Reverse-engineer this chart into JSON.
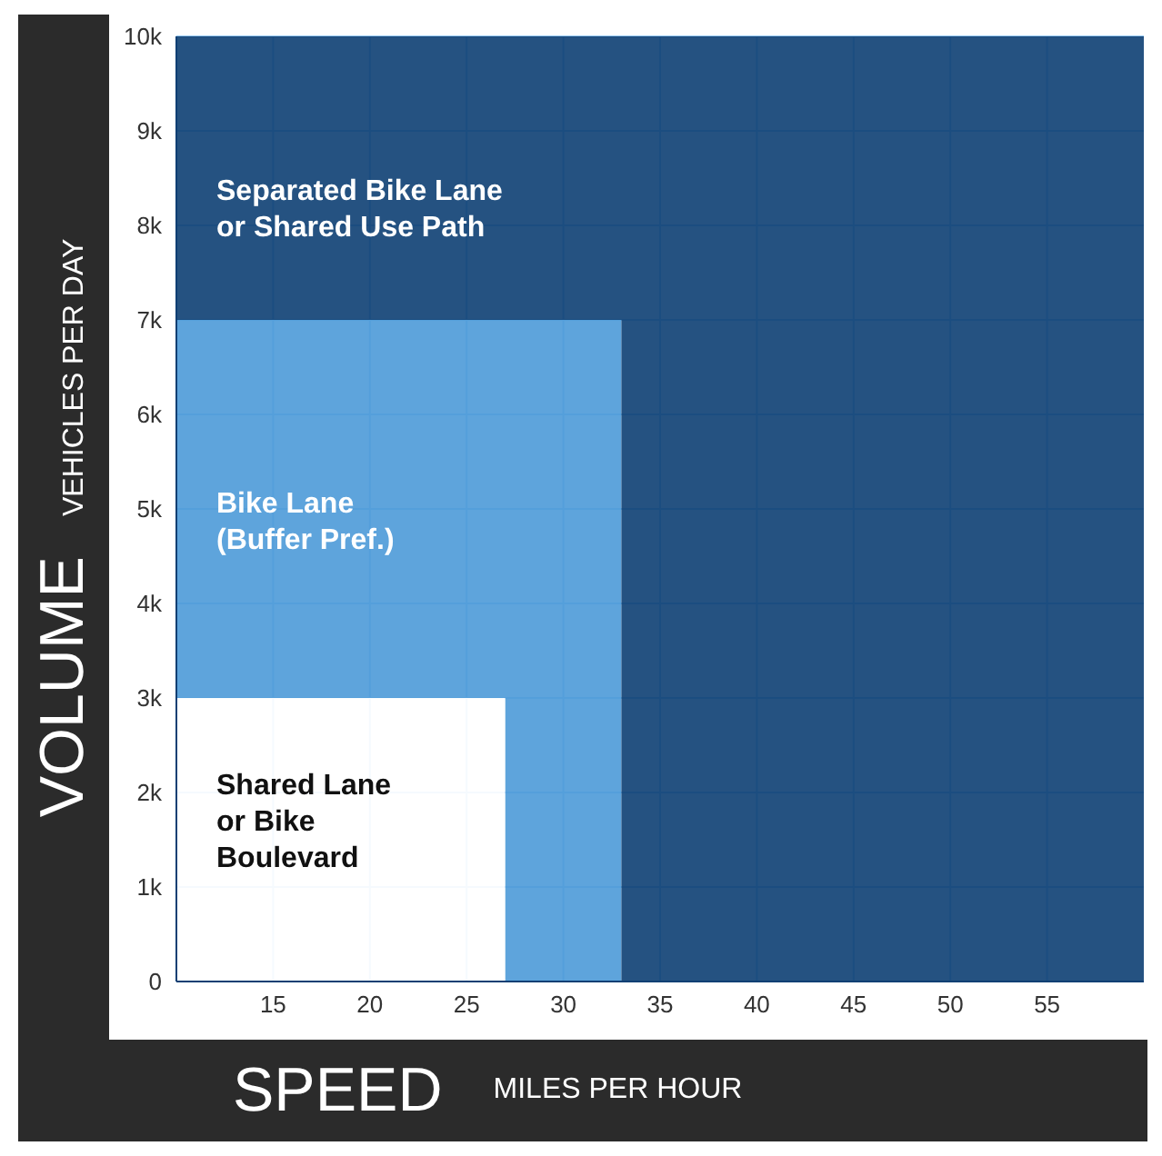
{
  "chart_data": {
    "type": "area",
    "stacked": true,
    "x": [
      10,
      27,
      27,
      33,
      33,
      60
    ],
    "xlabel": "SPEED MILES PER HOUR",
    "ylabel": "VOLUME VEHICLES PER DAY",
    "xlim": [
      10,
      60
    ],
    "xticks": [
      15,
      20,
      25,
      30,
      35,
      40,
      45,
      50,
      55
    ],
    "ylim": [
      0,
      10000
    ],
    "yticks": [
      {
        "value": 0,
        "label": "0"
      },
      {
        "value": 1000,
        "label": "1k"
      },
      {
        "value": 2000,
        "label": "2k"
      },
      {
        "value": 3000,
        "label": "3k"
      },
      {
        "value": 4000,
        "label": "4k"
      },
      {
        "value": 5000,
        "label": "5k"
      },
      {
        "value": 6000,
        "label": "6k"
      },
      {
        "value": 7000,
        "label": "7k"
      },
      {
        "value": 8000,
        "label": "8k"
      },
      {
        "value": 9000,
        "label": "9k"
      },
      {
        "value": 10000,
        "label": "10k"
      }
    ],
    "grid": true,
    "marker": "none",
    "series": [
      {
        "name": "Shared Lane\nor Bike\nBoulevard",
        "color": "#ffffff",
        "values": [
          3000,
          3000,
          0,
          0,
          0,
          0
        ]
      },
      {
        "name": "Bike Lane\n(Buffer Pref.)",
        "color": "#4d9ad8",
        "values": [
          4000,
          4000,
          7000,
          7000,
          0,
          0
        ]
      },
      {
        "name": "Separated Bike Lane\nor Shared Use Path",
        "color": "#0d3f73",
        "values": [
          3000,
          3000,
          3000,
          3000,
          10000,
          10000
        ]
      }
    ]
  }
}
